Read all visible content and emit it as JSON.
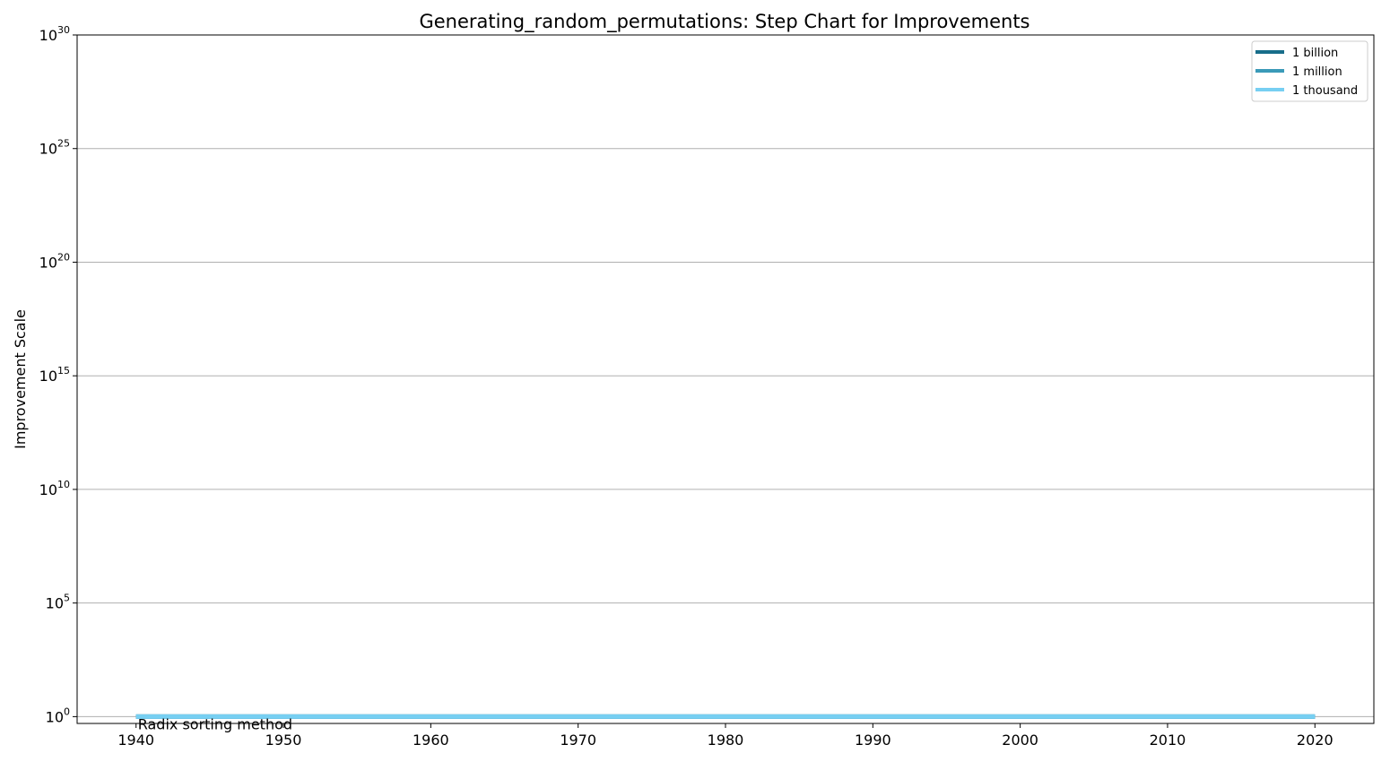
{
  "chart_data": {
    "type": "line",
    "step": true,
    "title": "Generating_random_permutations: Step Chart for Improvements",
    "xlabel": "",
    "ylabel": "Improvement Scale",
    "y_scale": "log",
    "xlim": [
      1936,
      2024
    ],
    "ylim_exponent": [
      -0.3,
      30
    ],
    "x_ticks": [
      1940,
      1950,
      1960,
      1970,
      1980,
      1990,
      2000,
      2010,
      2020
    ],
    "y_ticks": [
      {
        "base": "10",
        "exponent": "0",
        "value": 1
      },
      {
        "base": "10",
        "exponent": "5",
        "value": 100000
      },
      {
        "base": "10",
        "exponent": "10",
        "value": 10000000000
      },
      {
        "base": "10",
        "exponent": "15",
        "value": 1000000000000000.0
      },
      {
        "base": "10",
        "exponent": "20",
        "value": 1e+20
      },
      {
        "base": "10",
        "exponent": "25",
        "value": 1e+25
      },
      {
        "base": "10",
        "exponent": "30",
        "value": 1e+30
      }
    ],
    "grid": "horizontal",
    "legend_position": "top-right",
    "series": [
      {
        "name": "1 billion",
        "color": "#176d8a",
        "points": [
          [
            1940,
            1
          ],
          [
            2020,
            1
          ]
        ]
      },
      {
        "name": "1 million",
        "color": "#3a9ab8",
        "points": [
          [
            1940,
            1
          ],
          [
            2020,
            1
          ]
        ]
      },
      {
        "name": "1 thousand",
        "color": "#77cff2",
        "points": [
          [
            1940,
            1
          ],
          [
            2020,
            1
          ]
        ]
      }
    ],
    "annotations": [
      {
        "text": "Radix sorting method",
        "x": 1940,
        "y": 1
      }
    ]
  }
}
